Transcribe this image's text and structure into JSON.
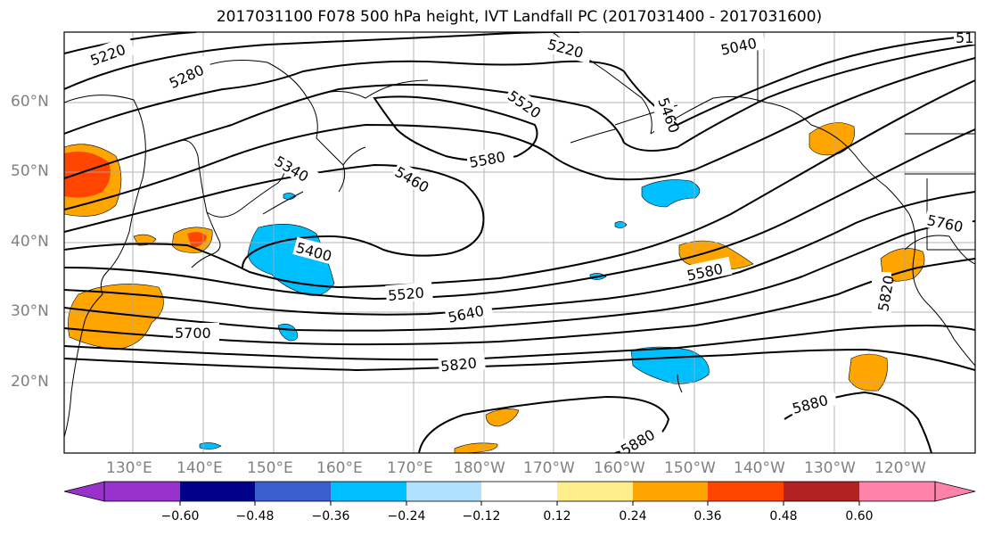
{
  "title": "2017031100 F078 500 hPa height, IVT Landfall PC (2017031400 - 2017031600)",
  "lat_labels": [
    "60°N",
    "50°N",
    "40°N",
    "30°N",
    "20°N"
  ],
  "lon_labels": [
    "130°E",
    "140°E",
    "150°E",
    "160°E",
    "170°E",
    "180°W",
    "170°W",
    "160°W",
    "150°W",
    "140°W",
    "130°W",
    "120°W"
  ],
  "contour_labels": [
    "5220",
    "5280",
    "5220",
    "5040",
    "5520",
    "5580",
    "5460",
    "5340",
    "5400",
    "5520",
    "5640",
    "5700",
    "5820",
    "5580",
    "5760",
    "5880",
    "5880",
    "5820",
    "5460",
    "51"
  ],
  "colorbar": {
    "tick_labels": [
      "−0.60",
      "−0.48",
      "−0.36",
      "−0.24",
      "−0.12",
      "0.12",
      "0.24",
      "0.36",
      "0.48",
      "0.60"
    ],
    "colors": [
      "#9932cc",
      "#00008b",
      "#3a5fcd",
      "#00bfff",
      "#b0e2ff",
      "#ffffff",
      "#ffec8b",
      "#ffa500",
      "#ff4500",
      "#b22222",
      "#ff82ab"
    ]
  }
}
